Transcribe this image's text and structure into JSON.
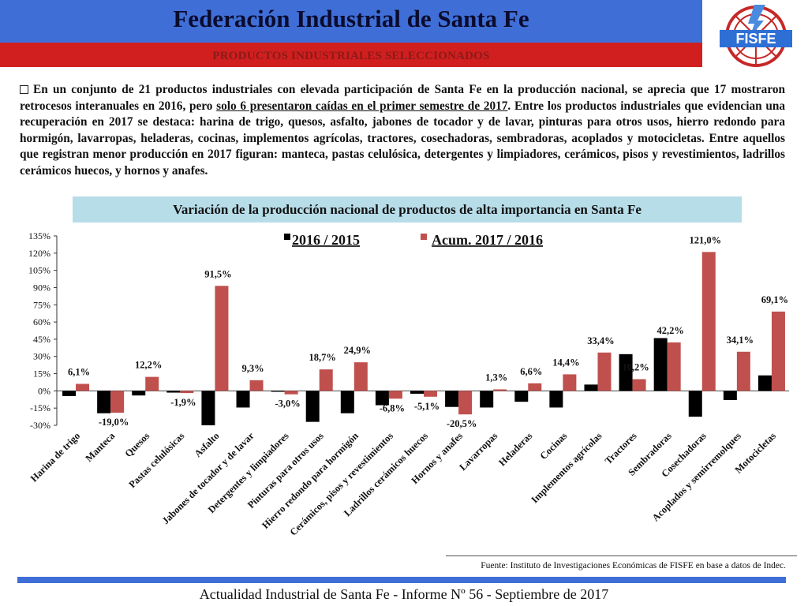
{
  "header": {
    "title": "Federación Industrial de Santa Fe",
    "subtitle": "PRODUCTOS INDUSTRIALES SELECCIONADOS",
    "logo_text": "FISFE"
  },
  "intro": {
    "part1": "En un conjunto de 21 productos industriales con elevada participación de Santa Fe en la producción nacional, se aprecia que 17 mostraron retrocesos interanuales en 2016, pero ",
    "underlined": "solo 6 presentaron caídas en el primer semestre de 2017",
    "part2": ". Entre los productos industriales que evidencian una recuperación en 2017 se destaca: harina de trigo, quesos, asfalto, jabones de tocador y de lavar, pinturas para otros usos, hierro redondo para hormigón, lavarropas, heladeras, cocinas, implementos agrícolas, tractores, cosechadoras, sembradoras, acoplados y motocicletas. Entre aquellos que registran menor producción en 2017 figuran: manteca, pastas celulósica, detergentes y limpiadores, cerámicos, pisos y revestimientos, ladrillos cerámicos huecos, y hornos y anafes."
  },
  "chart_data": {
    "type": "bar",
    "title": "Variación de la producción nacional de productos de alta importancia en Santa Fe",
    "categories": [
      "Harina de trigo",
      "Manteca",
      "Quesos",
      "Pastas celulósicas",
      "Asfalto",
      "Jabones de tocador y de lavar",
      "Detergentes y limpiadores",
      "Pinturas para otros usos",
      "Hierro redondo para hormigón",
      "Cerámicos, pisos y revestimientos",
      "Ladrillos cerámicos huecos",
      "Hornos y anafes",
      "Lavarropas",
      "Heladeras",
      "Cocinas",
      "Implementos agrícolas",
      "Tractores",
      "Sembradoras",
      "Cosechadoras",
      "Acoplados y semirremolques",
      "Motocicletas"
    ],
    "series": [
      {
        "name": "2016 / 2015",
        "color": "#000000",
        "values": [
          -4.5,
          -19.5,
          -4.0,
          -1.5,
          -30.0,
          -14.5,
          -0.8,
          -27.0,
          -19.5,
          -12.5,
          -2.5,
          -14.0,
          -14.5,
          -9.5,
          -14.5,
          5.5,
          32.0,
          46.0,
          -22.5,
          -8.0,
          13.5
        ]
      },
      {
        "name": "Acum. 2017 / 2016",
        "color": "#c0504d",
        "values": [
          6.1,
          -19.0,
          12.2,
          -1.9,
          91.5,
          9.3,
          -3.0,
          18.7,
          24.9,
          -6.8,
          -5.1,
          -20.5,
          1.3,
          6.6,
          14.4,
          33.4,
          10.2,
          42.2,
          121.0,
          34.1,
          69.1
        ]
      }
    ],
    "data_labels": [
      "6,1%",
      "-19,0%",
      "12,2%",
      "-1,9%",
      "91,5%",
      "9,3%",
      "-3,0%",
      "18,7%",
      "24,9%",
      "-6,8%",
      "-5,1%",
      "-20,5%",
      "1,3%",
      "6,6%",
      "14,4%",
      "33,4%",
      "10,2%",
      "42,2%",
      "121,0%",
      "34,1%",
      "69,1%"
    ],
    "y_ticks": [
      135,
      120,
      105,
      90,
      75,
      60,
      45,
      30,
      15,
      0,
      -15,
      -30
    ],
    "y_tick_labels": [
      "135%",
      "120%",
      "105%",
      "90%",
      "75%",
      "60%",
      "45%",
      "30%",
      "15%",
      "0%",
      "-15%",
      "-30%"
    ],
    "ylim": [
      -30,
      135
    ],
    "legend": {
      "placement": "top",
      "items": [
        "2016 / 2015",
        "Acum. 2017 / 2016"
      ]
    },
    "grid": false
  },
  "source": "Fuente: Instituto de Investigaciones Económicas de FISFE en base a datos de Indec.",
  "footer": "Actualidad Industrial de Santa Fe - Informe Nº 56 - Septiembre de 2017",
  "colors": {
    "header_blue": "#3f6fd6",
    "header_red": "#d11f1f",
    "chart_title_bg": "#b7dde8",
    "series_2016": "#000000",
    "series_2017": "#c0504d"
  }
}
